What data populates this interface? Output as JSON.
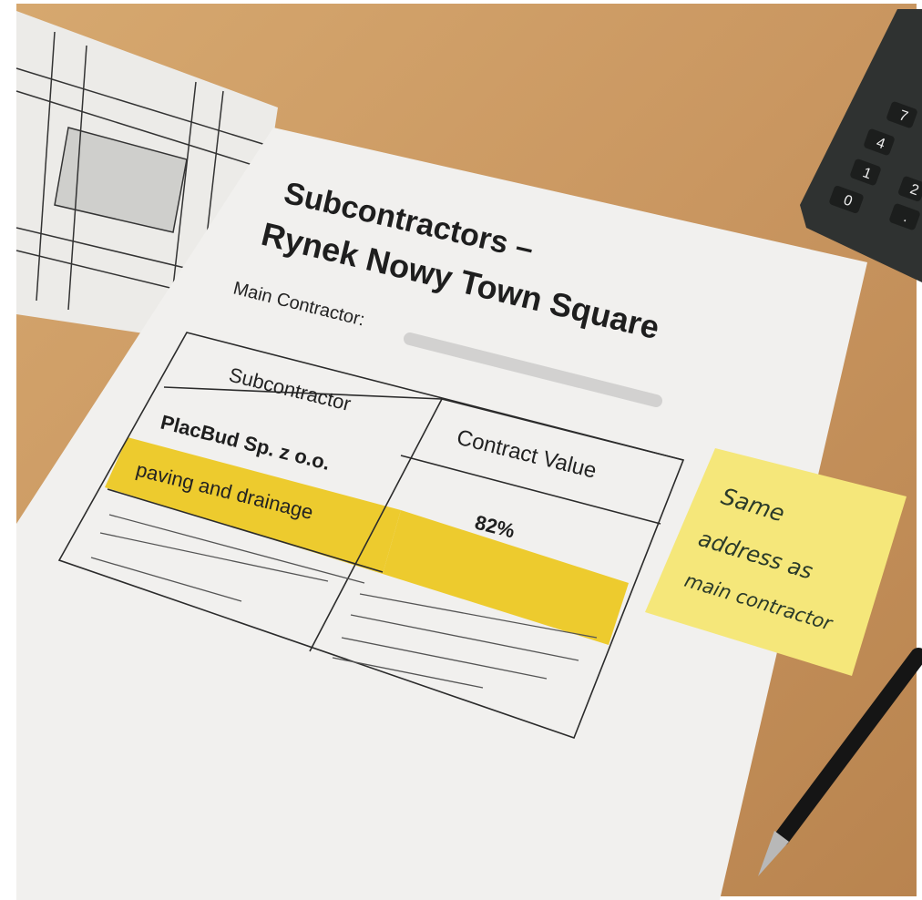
{
  "document": {
    "title_lines": [
      "Subcontractors –",
      "Rynek Nowy Town Square"
    ],
    "main_contractor_label": "Main Contractor:",
    "table": {
      "headers": [
        "Subcontractor",
        "Contract Value"
      ],
      "rows": [
        [
          "PlacBud Sp. z o.o.",
          "82%"
        ]
      ],
      "row_note": "paving and drainage"
    }
  },
  "sticky_note": {
    "lines": [
      "Same",
      "address as",
      "main contractor"
    ]
  },
  "calculator": {
    "keys": [
      "7",
      "4",
      "1",
      "0",
      "2",
      "."
    ]
  }
}
